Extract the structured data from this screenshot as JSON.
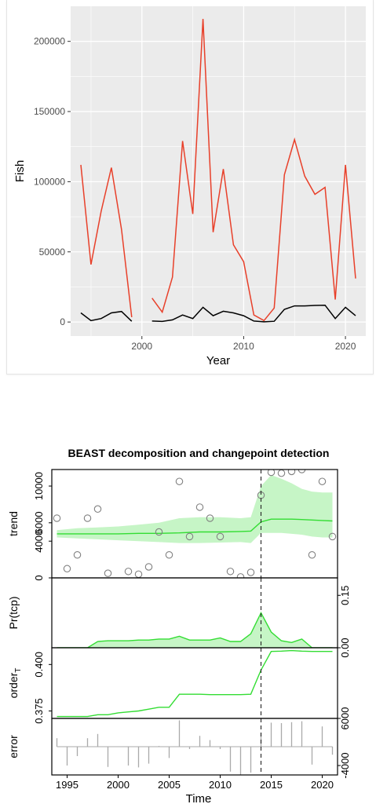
{
  "colors": {
    "panel_bg": "#ebebeb",
    "grid": "#ffffff",
    "series_red": "#e8402a",
    "series_black": "#000000",
    "beast_green": "#33dd33",
    "beast_band": "#c6f5c6",
    "points": "#808080",
    "error_bars": "#aaaaaa"
  },
  "chart_data": [
    {
      "type": "line",
      "title": "",
      "xlabel": "Year",
      "ylabel": "Fish",
      "xlim": [
        1993,
        2022
      ],
      "ylim": [
        -10000,
        225000
      ],
      "xticks": [
        2000,
        2010,
        2020
      ],
      "yticks": [
        0,
        50000,
        100000,
        150000,
        200000
      ],
      "grid": true,
      "series": [
        {
          "color": "#e8402a",
          "x": [
            1994,
            1995,
            1996,
            1997,
            1998,
            1999,
            2000,
            2001,
            2002,
            2003,
            2004,
            2005,
            2006,
            2007,
            2008,
            2009,
            2010,
            2011,
            2012,
            2013,
            2014,
            2015,
            2016,
            2017,
            2018,
            2019,
            2020,
            2021
          ],
          "values": [
            112000,
            41000,
            79000,
            110000,
            66000,
            3500,
            null,
            17000,
            7000,
            32000,
            129000,
            77000,
            216000,
            64000,
            109000,
            55000,
            43000,
            5000,
            1000,
            10000,
            105000,
            130000,
            104000,
            91000,
            96000,
            16000,
            112000,
            31000
          ]
        },
        {
          "color": "#000000",
          "x": [
            1994,
            1995,
            1996,
            1997,
            1998,
            1999,
            2000,
            2001,
            2002,
            2003,
            2004,
            2005,
            2006,
            2007,
            2008,
            2009,
            2010,
            2011,
            2012,
            2013,
            2014,
            2015,
            2016,
            2017,
            2018,
            2019,
            2020,
            2021
          ],
          "values": [
            6500,
            1000,
            2500,
            6500,
            7500,
            500,
            null,
            700,
            400,
            1500,
            5000,
            2500,
            10500,
            4500,
            7700,
            6500,
            4500,
            700,
            100,
            500,
            9000,
            11500,
            11500,
            11800,
            12000,
            2500,
            10500,
            4500
          ]
        }
      ]
    },
    {
      "type": "line",
      "title": "BEAST decomposition and changepoint detection",
      "xlabel": "Time",
      "xlim": [
        1993.5,
        2021.5
      ],
      "xticks": [
        1995,
        2000,
        2005,
        2010,
        2015,
        2020
      ],
      "changepoint": 2014,
      "panels": [
        {
          "label": "trend",
          "ylim": [
            0,
            11800
          ],
          "yticks": [
            0,
            4000,
            6000,
            10000
          ],
          "yaxis_side": "left",
          "points_x": [
            1994,
            1995,
            1996,
            1997,
            1998,
            1999,
            2001,
            2002,
            2003,
            2004,
            2005,
            2006,
            2007,
            2008,
            2009,
            2010,
            2011,
            2012,
            2013,
            2014,
            2015,
            2016,
            2017,
            2018,
            2019,
            2020,
            2021
          ],
          "points_y": [
            6500,
            1000,
            2500,
            6500,
            7500,
            500,
            700,
            400,
            1200,
            5000,
            2500,
            10500,
            4500,
            7700,
            6500,
            4500,
            700,
            100,
            600,
            9000,
            11500,
            11400,
            11600,
            11800,
            2500,
            10500,
            4500
          ],
          "x": [
            1994,
            1996,
            1998,
            2000,
            2002,
            2004,
            2006,
            2008,
            2010,
            2012,
            2013,
            2014,
            2015,
            2016,
            2017,
            2018,
            2019,
            2020,
            2021
          ],
          "values": [
            4800,
            4800,
            4800,
            4800,
            4850,
            4850,
            4900,
            5000,
            5000,
            5050,
            5100,
            6100,
            6400,
            6400,
            6400,
            6350,
            6300,
            6250,
            6200
          ],
          "upper": [
            5200,
            5400,
            5500,
            5600,
            5800,
            6000,
            6500,
            6600,
            6600,
            6500,
            6600,
            10000,
            11200,
            10800,
            10300,
            9700,
            9400,
            9300,
            9300
          ],
          "lower": [
            4400,
            4300,
            4200,
            4100,
            4000,
            3900,
            3800,
            3800,
            3850,
            3900,
            3800,
            4900,
            4900,
            4900,
            4800,
            4700,
            4500,
            4400,
            4400
          ]
        },
        {
          "label": "Pr(tcp)",
          "ylim": [
            0,
            0.2
          ],
          "yticks": [
            0.0,
            0.15
          ],
          "yaxis_side": "right",
          "x": [
            1994,
            1995,
            1996,
            1997,
            1998,
            1999,
            2000,
            2001,
            2002,
            2003,
            2004,
            2005,
            2006,
            2007,
            2008,
            2009,
            2010,
            2011,
            2012,
            2013,
            2014,
            2015,
            2016,
            2017,
            2018,
            2019,
            2020,
            2021
          ],
          "values": [
            0.0,
            0.0,
            0.0,
            0.0,
            0.018,
            0.02,
            0.02,
            0.02,
            0.022,
            0.022,
            0.025,
            0.025,
            0.033,
            0.022,
            0.022,
            0.022,
            0.028,
            0.018,
            0.018,
            0.04,
            0.1,
            0.045,
            0.02,
            0.015,
            0.025,
            0.0,
            0.0,
            0.0
          ]
        },
        {
          "label": "orderT",
          "ylim": [
            0.371,
            0.409
          ],
          "yticks": [
            0.375,
            0.4
          ],
          "yaxis_side": "left",
          "x": [
            1994,
            1995,
            1996,
            1997,
            1998,
            1999,
            2000,
            2001,
            2002,
            2003,
            2004,
            2005,
            2006,
            2007,
            2008,
            2009,
            2010,
            2011,
            2012,
            2013,
            2014,
            2015,
            2016,
            2017,
            2018,
            2019,
            2020,
            2021
          ],
          "values": [
            0.372,
            0.372,
            0.372,
            0.372,
            0.373,
            0.373,
            0.374,
            0.3745,
            0.375,
            0.376,
            0.377,
            0.377,
            0.384,
            0.384,
            0.384,
            0.3838,
            0.3838,
            0.3838,
            0.3838,
            0.384,
            0.397,
            0.407,
            0.4072,
            0.4075,
            0.4072,
            0.407,
            0.407,
            0.407
          ]
        },
        {
          "label": "error",
          "ylim": [
            -6000,
            6000
          ],
          "yticks": [
            -4000,
            6000
          ],
          "yaxis_side": "right",
          "x": [
            1994,
            1995,
            1996,
            1997,
            1998,
            1999,
            2001,
            2002,
            2003,
            2004,
            2005,
            2006,
            2007,
            2008,
            2009,
            2010,
            2011,
            2012,
            2013,
            2014,
            2015,
            2016,
            2017,
            2018,
            2019,
            2020,
            2021
          ],
          "values": [
            1800,
            -4000,
            -2000,
            1800,
            2700,
            -4300,
            -4000,
            -4400,
            -3600,
            150,
            -2400,
            5600,
            -500,
            2300,
            1400,
            -500,
            -5300,
            -6000,
            -5500,
            2900,
            5100,
            5000,
            5200,
            5400,
            -3800,
            4300,
            -1700
          ]
        }
      ]
    }
  ]
}
